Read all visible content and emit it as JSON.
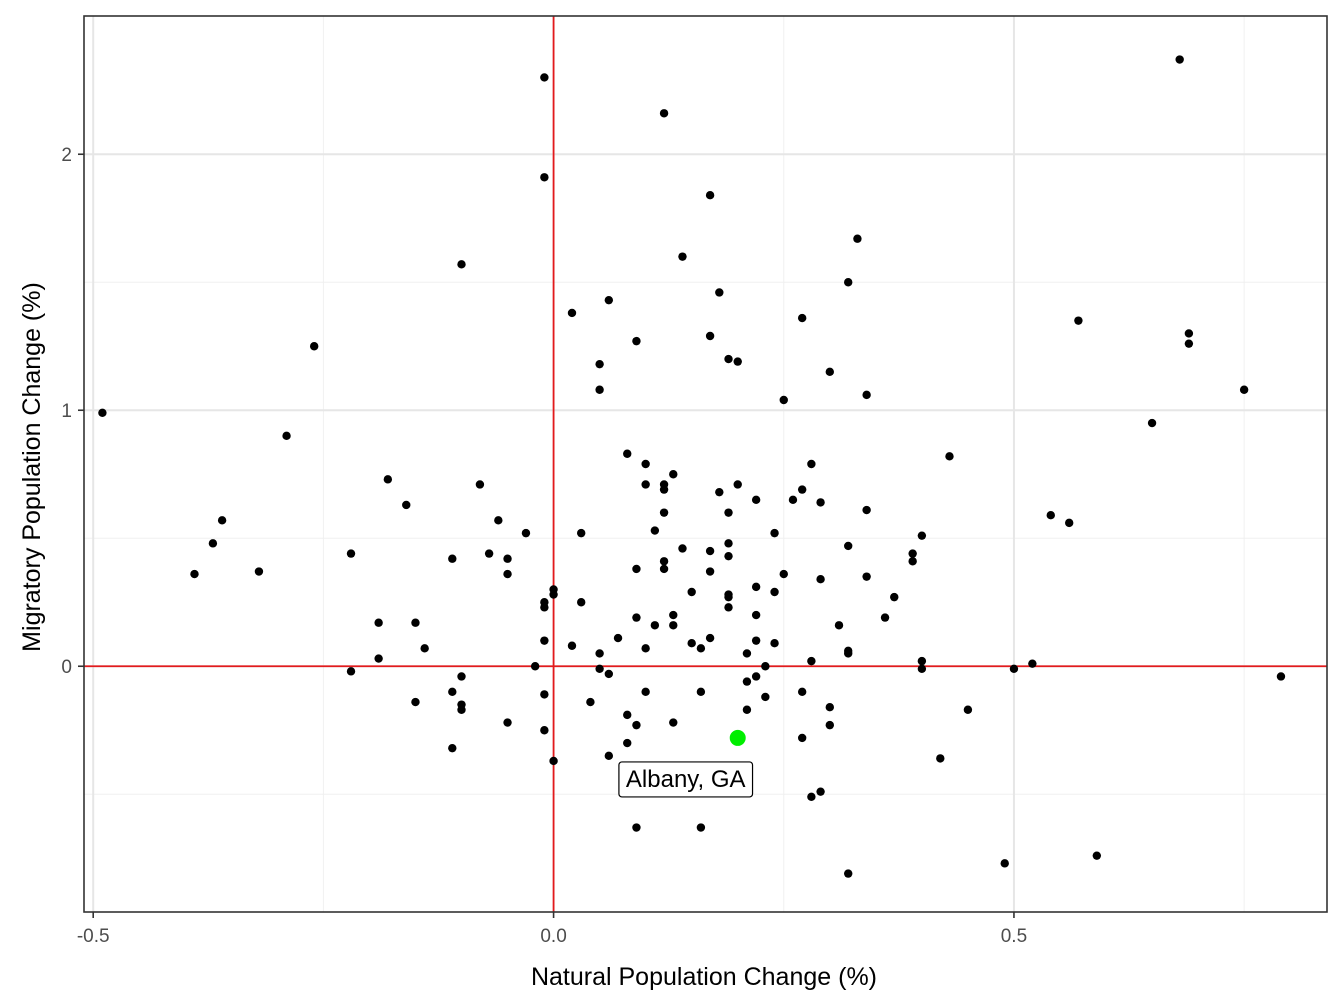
{
  "chart_data": {
    "type": "scatter",
    "title": "",
    "xlabel": "Natural Population Change (%)",
    "ylabel": "Migratory Population Change (%)",
    "xlim": [
      -0.51,
      0.84
    ],
    "ylim": [
      -0.96,
      2.54
    ],
    "x_ticks": [
      -0.5,
      0.0,
      0.5
    ],
    "x_tick_labels": [
      "-0.5",
      "0.0",
      "0.5"
    ],
    "y_ticks": [
      0,
      1,
      2
    ],
    "y_tick_labels": [
      "0",
      "1",
      "2"
    ],
    "x_minor_grid": [
      -0.25,
      0.25,
      0.75
    ],
    "y_minor_grid": [
      -0.5,
      0.5,
      1.5
    ],
    "grid": true,
    "reference_lines": {
      "x": 0,
      "y": 0,
      "color": "#e31a1c"
    },
    "point_color": "#000000",
    "highlight": {
      "label": "Albany, GA",
      "x": 0.2,
      "y": -0.28,
      "color": "#00ee00"
    },
    "points": [
      [
        -0.49,
        0.99
      ],
      [
        -0.39,
        0.36
      ],
      [
        -0.37,
        0.48
      ],
      [
        -0.36,
        0.57
      ],
      [
        -0.32,
        0.37
      ],
      [
        -0.29,
        0.9
      ],
      [
        -0.26,
        1.25
      ],
      [
        -0.22,
        0.44
      ],
      [
        -0.22,
        -0.02
      ],
      [
        -0.19,
        0.17
      ],
      [
        -0.19,
        0.03
      ],
      [
        -0.18,
        0.73
      ],
      [
        -0.16,
        0.63
      ],
      [
        -0.15,
        0.17
      ],
      [
        -0.15,
        -0.14
      ],
      [
        -0.14,
        0.07
      ],
      [
        -0.11,
        0.42
      ],
      [
        -0.11,
        -0.1
      ],
      [
        -0.11,
        -0.32
      ],
      [
        -0.1,
        1.57
      ],
      [
        -0.1,
        -0.04
      ],
      [
        -0.1,
        -0.15
      ],
      [
        -0.1,
        -0.17
      ],
      [
        -0.08,
        0.71
      ],
      [
        -0.07,
        0.44
      ],
      [
        -0.06,
        0.57
      ],
      [
        -0.05,
        0.42
      ],
      [
        -0.05,
        0.36
      ],
      [
        -0.05,
        -0.22
      ],
      [
        -0.03,
        0.52
      ],
      [
        -0.02,
        0.0
      ],
      [
        -0.01,
        2.3
      ],
      [
        -0.01,
        1.91
      ],
      [
        -0.01,
        0.25
      ],
      [
        -0.01,
        0.23
      ],
      [
        -0.01,
        0.1
      ],
      [
        -0.01,
        -0.11
      ],
      [
        -0.01,
        -0.25
      ],
      [
        0.0,
        0.3
      ],
      [
        0.0,
        0.28
      ],
      [
        0.0,
        -0.37
      ],
      [
        0.02,
        1.38
      ],
      [
        0.02,
        0.08
      ],
      [
        0.03,
        0.52
      ],
      [
        0.03,
        0.25
      ],
      [
        0.04,
        -0.14
      ],
      [
        0.05,
        1.18
      ],
      [
        0.05,
        1.08
      ],
      [
        0.05,
        0.05
      ],
      [
        0.05,
        -0.01
      ],
      [
        0.06,
        1.43
      ],
      [
        0.06,
        -0.03
      ],
      [
        0.06,
        -0.35
      ],
      [
        0.07,
        0.11
      ],
      [
        0.08,
        0.83
      ],
      [
        0.08,
        -0.19
      ],
      [
        0.08,
        -0.3
      ],
      [
        0.09,
        1.27
      ],
      [
        0.09,
        0.38
      ],
      [
        0.09,
        0.19
      ],
      [
        0.09,
        -0.23
      ],
      [
        0.09,
        -0.63
      ],
      [
        0.1,
        0.79
      ],
      [
        0.1,
        0.71
      ],
      [
        0.1,
        0.07
      ],
      [
        0.1,
        -0.1
      ],
      [
        0.11,
        0.53
      ],
      [
        0.11,
        0.16
      ],
      [
        0.12,
        2.16
      ],
      [
        0.12,
        0.71
      ],
      [
        0.12,
        0.69
      ],
      [
        0.12,
        0.6
      ],
      [
        0.12,
        0.41
      ],
      [
        0.12,
        0.38
      ],
      [
        0.13,
        0.75
      ],
      [
        0.13,
        0.2
      ],
      [
        0.13,
        0.16
      ],
      [
        0.13,
        -0.22
      ],
      [
        0.14,
        1.6
      ],
      [
        0.14,
        0.46
      ],
      [
        0.15,
        0.29
      ],
      [
        0.15,
        0.09
      ],
      [
        0.16,
        0.07
      ],
      [
        0.16,
        -0.1
      ],
      [
        0.16,
        -0.63
      ],
      [
        0.17,
        1.84
      ],
      [
        0.17,
        1.29
      ],
      [
        0.17,
        0.45
      ],
      [
        0.17,
        0.37
      ],
      [
        0.17,
        0.11
      ],
      [
        0.18,
        1.46
      ],
      [
        0.18,
        0.68
      ],
      [
        0.19,
        1.2
      ],
      [
        0.19,
        0.6
      ],
      [
        0.19,
        0.48
      ],
      [
        0.19,
        0.43
      ],
      [
        0.19,
        0.28
      ],
      [
        0.19,
        0.27
      ],
      [
        0.19,
        0.23
      ],
      [
        0.2,
        1.19
      ],
      [
        0.2,
        0.71
      ],
      [
        0.21,
        0.05
      ],
      [
        0.21,
        -0.06
      ],
      [
        0.21,
        -0.17
      ],
      [
        0.21,
        -0.42
      ],
      [
        0.22,
        0.65
      ],
      [
        0.22,
        0.31
      ],
      [
        0.22,
        0.2
      ],
      [
        0.22,
        0.1
      ],
      [
        0.22,
        -0.04
      ],
      [
        0.23,
        0.0
      ],
      [
        0.23,
        -0.12
      ],
      [
        0.24,
        0.52
      ],
      [
        0.24,
        0.29
      ],
      [
        0.24,
        0.09
      ],
      [
        0.25,
        1.04
      ],
      [
        0.25,
        0.36
      ],
      [
        0.26,
        0.65
      ],
      [
        0.27,
        1.36
      ],
      [
        0.27,
        0.69
      ],
      [
        0.27,
        -0.1
      ],
      [
        0.27,
        -0.28
      ],
      [
        0.28,
        0.79
      ],
      [
        0.28,
        0.02
      ],
      [
        0.28,
        -0.51
      ],
      [
        0.29,
        0.64
      ],
      [
        0.29,
        0.34
      ],
      [
        0.29,
        -0.49
      ],
      [
        0.3,
        1.15
      ],
      [
        0.3,
        -0.16
      ],
      [
        0.3,
        -0.23
      ],
      [
        0.31,
        0.16
      ],
      [
        0.32,
        1.5
      ],
      [
        0.32,
        0.47
      ],
      [
        0.32,
        0.06
      ],
      [
        0.32,
        0.05
      ],
      [
        0.32,
        -0.81
      ],
      [
        0.33,
        1.67
      ],
      [
        0.34,
        1.06
      ],
      [
        0.34,
        0.61
      ],
      [
        0.34,
        0.35
      ],
      [
        0.36,
        0.19
      ],
      [
        0.37,
        0.27
      ],
      [
        0.39,
        0.44
      ],
      [
        0.39,
        0.41
      ],
      [
        0.4,
        0.51
      ],
      [
        0.4,
        0.02
      ],
      [
        0.4,
        -0.01
      ],
      [
        0.42,
        -0.36
      ],
      [
        0.43,
        0.82
      ],
      [
        0.45,
        -0.17
      ],
      [
        0.49,
        -0.77
      ],
      [
        0.5,
        -0.01
      ],
      [
        0.52,
        0.01
      ],
      [
        0.54,
        0.59
      ],
      [
        0.56,
        0.56
      ],
      [
        0.57,
        1.35
      ],
      [
        0.59,
        -0.74
      ],
      [
        0.65,
        0.95
      ],
      [
        0.68,
        2.37
      ],
      [
        0.69,
        1.3
      ],
      [
        0.69,
        1.26
      ],
      [
        0.75,
        1.08
      ],
      [
        0.79,
        -0.04
      ]
    ]
  }
}
